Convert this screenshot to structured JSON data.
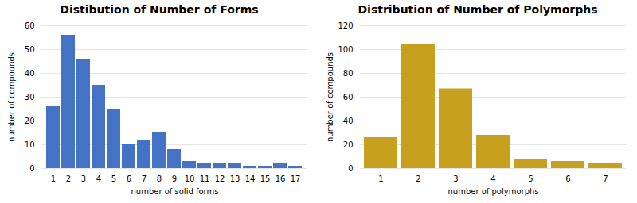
{
  "chart_data": [
    {
      "type": "bar",
      "title": "Distibution of Number of Forms",
      "xlabel": "number of solid forms",
      "ylabel": "number of compounds",
      "categories": [
        1,
        2,
        3,
        4,
        5,
        6,
        7,
        8,
        9,
        10,
        11,
        12,
        13,
        14,
        15,
        16,
        17
      ],
      "values": [
        26,
        56,
        46,
        35,
        25,
        10,
        12,
        15,
        8,
        3,
        2,
        2,
        2,
        1,
        1,
        2,
        1
      ],
      "color": "#4472C4",
      "ylim": [
        0,
        60
      ],
      "yticks": [
        0,
        10,
        20,
        30,
        40,
        50,
        60
      ],
      "grid": true
    },
    {
      "type": "bar",
      "title": "Distribution of Number of Polymorphs",
      "xlabel": "number of polymorphs",
      "ylabel": "number of compounds",
      "categories": [
        1,
        2,
        3,
        4,
        5,
        6,
        7
      ],
      "values": [
        26,
        104,
        67,
        28,
        8,
        6,
        4
      ],
      "color": "#C8A020",
      "ylim": [
        0,
        120
      ],
      "yticks": [
        0,
        20,
        40,
        60,
        80,
        100,
        120
      ],
      "grid": true
    }
  ]
}
